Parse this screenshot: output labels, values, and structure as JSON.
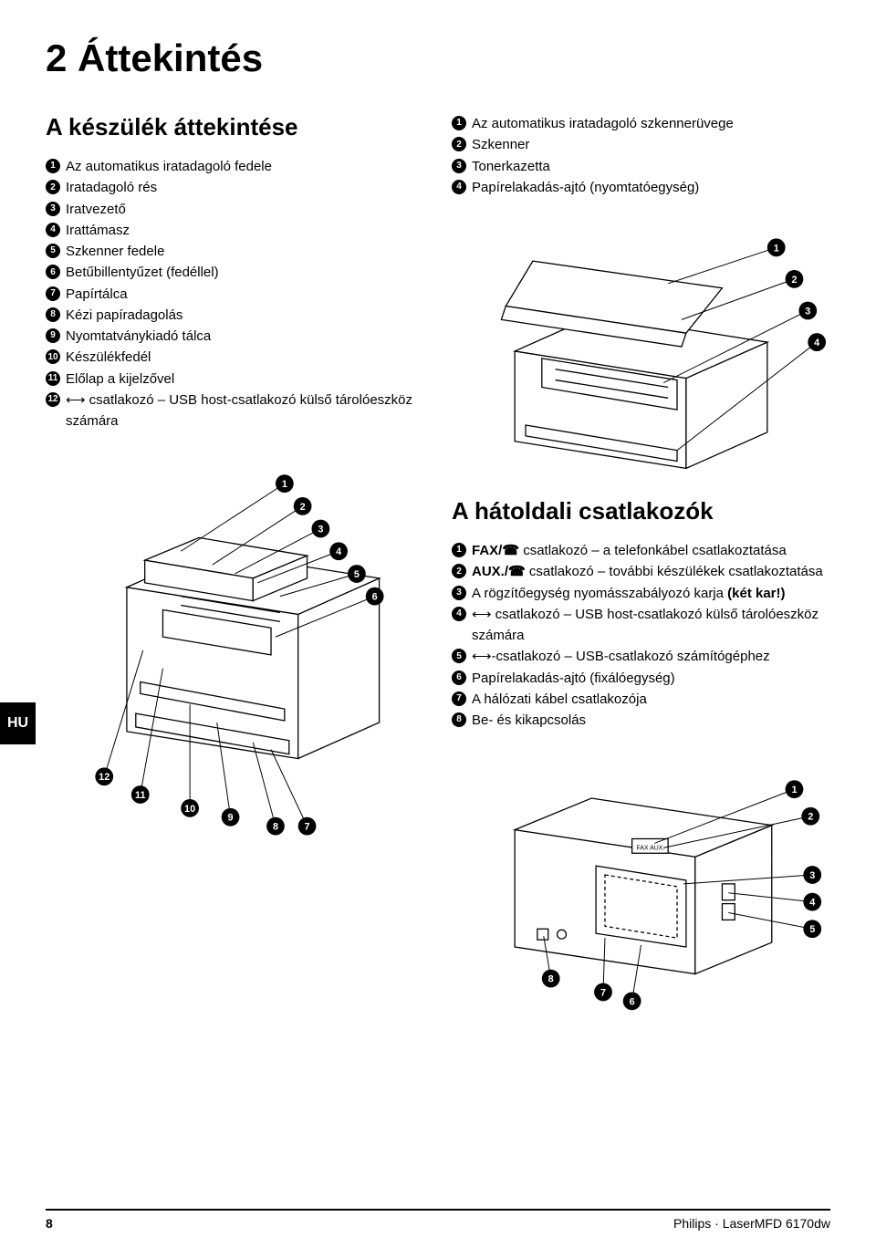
{
  "page_title": "2 Áttekintés",
  "lang_tab": "HU",
  "footer": {
    "page": "8",
    "product": "Philips · LaserMFD 6170dw"
  },
  "left": {
    "title": "A készülék áttekintése",
    "items": [
      "Az automatikus iratadagoló fedele",
      "Iratadagoló rés",
      "Iratvezető",
      "Irattámasz",
      "Szkenner fedele",
      "Betűbillentyűzet (fedéllel)",
      "Papírtálca",
      "Kézi papíradagolás",
      "Nyomtatványkiadó tálca",
      "Készülékfedél",
      "Előlap a kijelzővel",
      "⟷ csatlakozó – USB host-csatlakozó külső tároló­eszköz számára"
    ]
  },
  "right_top": {
    "items": [
      "Az automatikus iratadagoló szkennerüvege",
      "Szkenner",
      "Tonerkazetta",
      "Papírelakadás-ajtó (nyomtatóegység)"
    ]
  },
  "right_bottom": {
    "title": "A hátoldali csatlakozók",
    "items": [
      {
        "bold": "FAX/☎",
        "text": " csatlakozó – a telefonkábel csatlakoztatása"
      },
      {
        "bold": "AUX./☎",
        "text": " csatlakozó – további készülékek csatlakoztatása"
      },
      {
        "bold": "",
        "text": "A rögzítőegység nyomásszabályozó karja <b>(két kar!)</b>"
      },
      {
        "bold": "",
        "text": "⟷ csatlakozó – USB host-csatlakozó külső tároló­eszköz számára"
      },
      {
        "bold": "",
        "text": "⟷-csatlakozó – USB-csatlakozó számítógéphez"
      },
      {
        "bold": "",
        "text": "Papírelakadás-ajtó (fixálóegység)"
      },
      {
        "bold": "",
        "text": "A hálózati kábel csatlakozója"
      },
      {
        "bold": "",
        "text": "Be- és kikapcsolás"
      }
    ]
  },
  "illus1_callouts": [
    1,
    2,
    3,
    4,
    5,
    6,
    7,
    8,
    9,
    10,
    11,
    12
  ],
  "illus2_callouts": [
    1,
    2,
    3,
    4
  ],
  "illus3_callouts": [
    1,
    2,
    3,
    4,
    5,
    6,
    7,
    8
  ],
  "colors": {
    "text": "#000000",
    "badge_bg": "#000000",
    "badge_fg": "#ffffff",
    "line": "#000000"
  }
}
